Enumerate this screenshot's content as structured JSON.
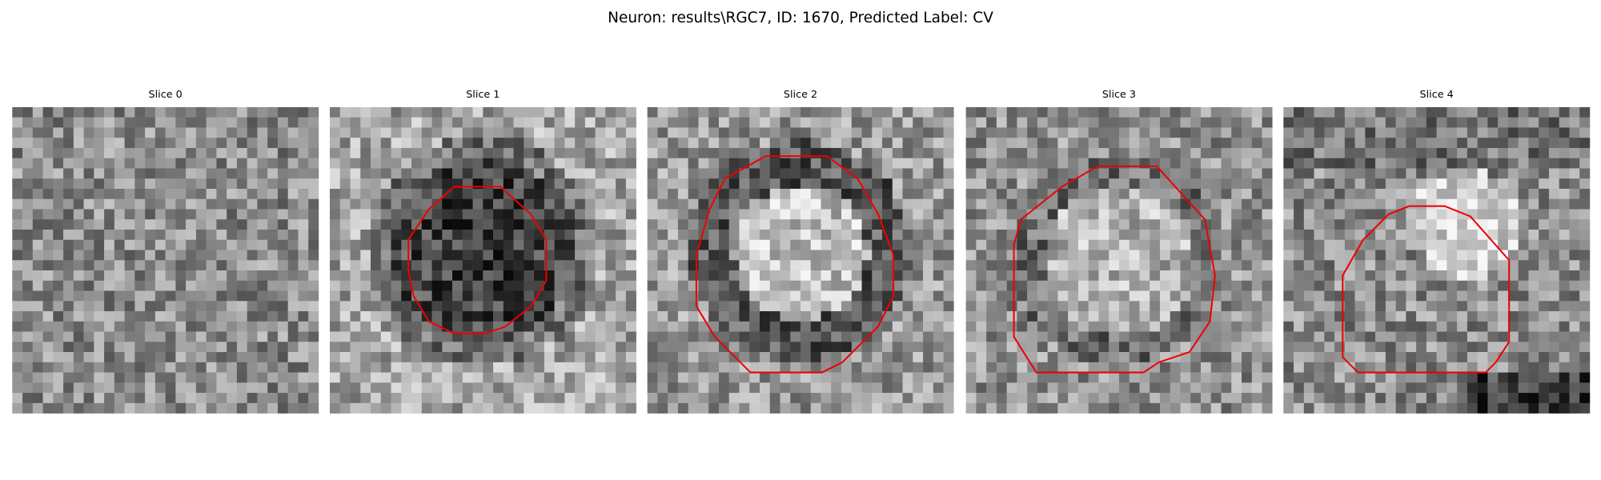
{
  "title": "Neuron: results\\RGC7, ID: 1670, Predicted Label: CV",
  "panels": [
    {
      "title": "Slice 0"
    },
    {
      "title": "Slice 1"
    },
    {
      "title": "Slice 2"
    },
    {
      "title": "Slice 3"
    },
    {
      "title": "Slice 4"
    }
  ]
}
